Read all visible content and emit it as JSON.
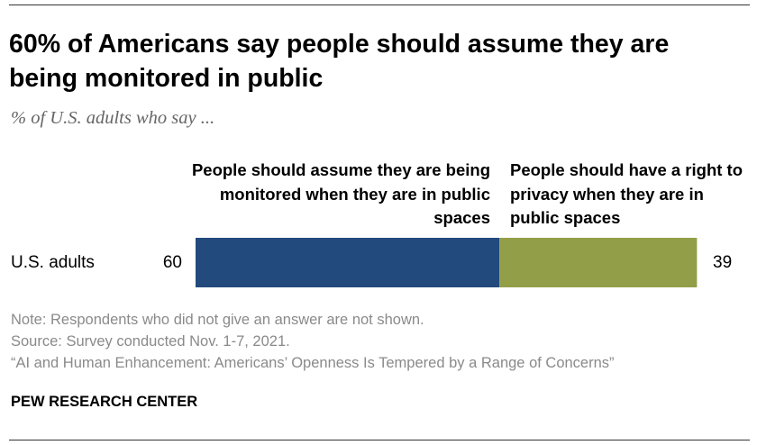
{
  "header": {
    "title": "60% of Americans say people should assume they are being monitored in public",
    "subtitle": "% of U.S. adults who say ..."
  },
  "chart_data": {
    "type": "bar",
    "orientation": "horizontal",
    "stacked": true,
    "categories": [
      "U.S. adults"
    ],
    "series": [
      {
        "name": "People should assume they are being monitored when they are in public spaces",
        "values": [
          60
        ],
        "color": "#234a7d"
      },
      {
        "name": "People should have a right to privacy when they are in public spaces",
        "values": [
          39
        ],
        "color": "#939e48"
      }
    ],
    "value_labels": [
      "60",
      "39"
    ],
    "xlim": [
      0,
      100
    ],
    "grid": false,
    "legend": "top"
  },
  "footer": {
    "note": "Note: Respondents who did not give an answer are not shown.",
    "source": "Source: Survey conducted Nov. 1-7, 2021.",
    "report": "“AI and Human Enhancement: Americans’ Openness Is Tempered by a Range of Concerns”",
    "organization": "PEW RESEARCH CENTER"
  }
}
